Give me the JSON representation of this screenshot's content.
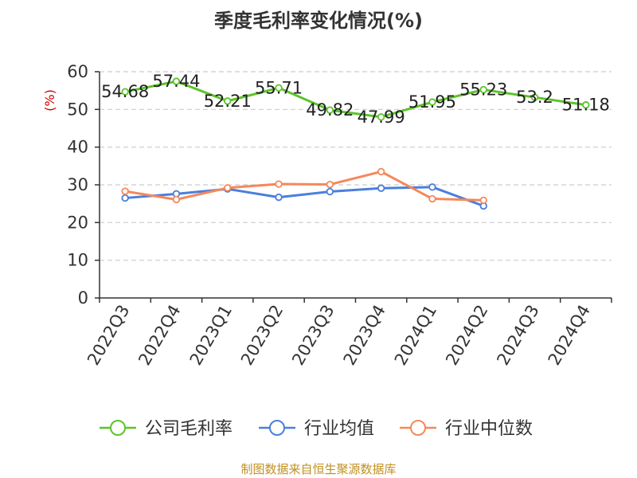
{
  "title": "季度毛利率变化情况(%)",
  "source": "制图数据来自恒生聚源数据库",
  "colors": {
    "company": "#5cc42a",
    "industry_avg": "#4a7fdc",
    "industry_median": "#f5885a",
    "grid": "#cccccc",
    "axis": "#333333"
  },
  "chart_data": {
    "type": "line",
    "title": "季度毛利率变化情况(%)",
    "ylabel": "(%)",
    "xlabel": "",
    "ylim": [
      0,
      60
    ],
    "yticks": [
      0,
      10,
      20,
      30,
      40,
      50,
      60
    ],
    "grid": true,
    "legend_position": "bottom",
    "categories": [
      "2022Q3",
      "2022Q4",
      "2023Q1",
      "2023Q2",
      "2023Q3",
      "2023Q4",
      "2024Q1",
      "2024Q2",
      "2024Q3",
      "2024Q4"
    ],
    "series": [
      {
        "name": "公司毛利率",
        "color": "#5cc42a",
        "values": [
          54.68,
          57.44,
          52.21,
          55.71,
          49.82,
          47.99,
          51.95,
          55.23,
          53.2,
          51.18
        ],
        "labels": [
          "54.68",
          "57.44",
          "52.21",
          "55.71",
          "49.82",
          "47.99",
          "51.95",
          "55.23",
          "53.2",
          "51.18"
        ]
      },
      {
        "name": "行业均值",
        "color": "#4a7fdc",
        "values": [
          26.5,
          27.6,
          28.9,
          26.7,
          28.2,
          29.1,
          29.4,
          24.4,
          null,
          null
        ]
      },
      {
        "name": "行业中位数",
        "color": "#f5885a",
        "values": [
          28.3,
          26.1,
          29.2,
          30.2,
          30.1,
          33.5,
          26.3,
          25.9,
          null,
          null
        ]
      }
    ]
  }
}
